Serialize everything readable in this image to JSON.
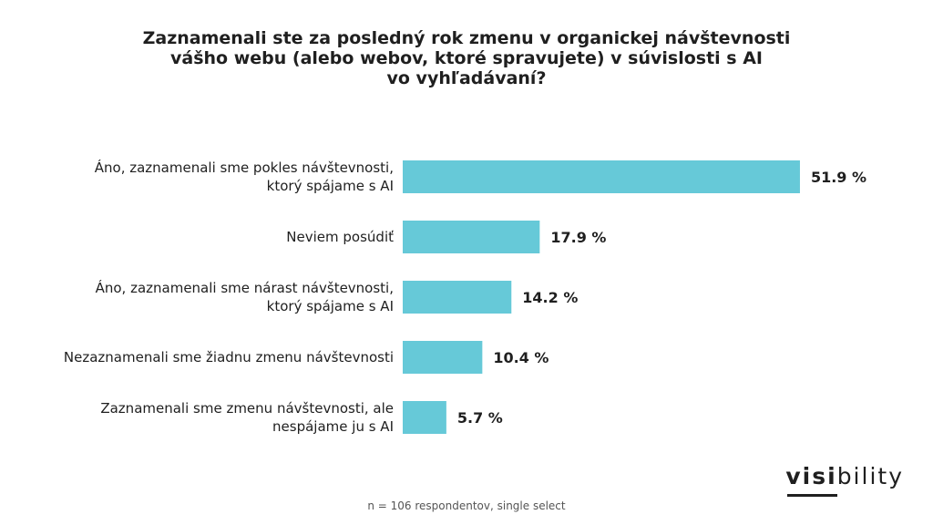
{
  "title_lines": [
    "Zaznamenali ste za posledný rok zmenu v organickej návštevnosti",
    "vášho webu (alebo webov, ktoré spravujete) v súvislosti s AI",
    "vo vyhľadávaní?"
  ],
  "footnote": "n = 106 respondentov, single select",
  "logo": {
    "strong": "visi",
    "light": "bility"
  },
  "colors": {
    "bar": "#66c9d8",
    "text": "#1f1f1f"
  },
  "chart_data": {
    "type": "bar",
    "orientation": "horizontal",
    "title": "Zaznamenali ste za posledný rok zmenu v organickej návštevnosti vášho webu (alebo webov, ktoré spravujete) v súvislosti s AI vo vyhľadávaní?",
    "categories": [
      [
        "Áno, zaznamenali sme pokles návštevnosti,",
        "ktorý spájame s AI"
      ],
      [
        "Neviem posúdiť"
      ],
      [
        "Áno, zaznamenali sme nárast návštevnosti,",
        "ktorý spájame s AI"
      ],
      [
        "Nezaznamenali sme žiadnu zmenu návštevnosti"
      ],
      [
        "Zaznamenali sme zmenu návštevnosti, ale",
        "nespájame ju s AI"
      ]
    ],
    "values": [
      51.9,
      17.9,
      14.2,
      10.4,
      5.7
    ],
    "value_labels": [
      "51.9 %",
      "17.9 %",
      "14.2 %",
      "10.4 %",
      "5.7 %"
    ],
    "unit": "%",
    "xlim": [
      0,
      100
    ],
    "grid": false,
    "legend": "none"
  }
}
